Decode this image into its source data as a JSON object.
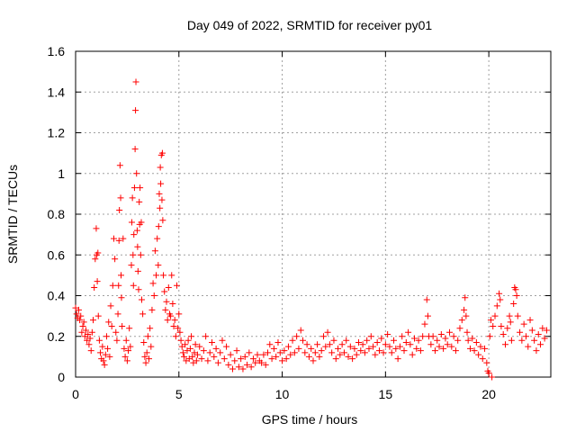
{
  "chart_data": {
    "type": "scatter",
    "title": "Day 049 of 2022, SRMTID for receiver py01",
    "xlabel": "GPS time / hours",
    "ylabel": "SRMTID / TECUs",
    "xlim": [
      0,
      23.0
    ],
    "ylim": [
      0,
      1.6
    ],
    "x_ticks": [
      0,
      5,
      10,
      15,
      20
    ],
    "x_tick_labels": [
      "0",
      "5",
      "10",
      "15",
      "20"
    ],
    "y_ticks": [
      0,
      0.2,
      0.4,
      0.6,
      0.8,
      1.0,
      1.2,
      1.4,
      1.6
    ],
    "y_tick_labels": [
      "0",
      "0.2",
      "0.4",
      "0.6",
      "0.8",
      "1",
      "1.2",
      "1.4",
      "1.6"
    ],
    "grid": true,
    "marker": "+",
    "series": [
      {
        "name": "py01",
        "color": "#ff0000",
        "points": [
          [
            0.0,
            0.34
          ],
          [
            0.05,
            0.31
          ],
          [
            0.1,
            0.29
          ],
          [
            0.15,
            0.33
          ],
          [
            0.2,
            0.28
          ],
          [
            0.25,
            0.3
          ],
          [
            0.3,
            0.22
          ],
          [
            0.35,
            0.25
          ],
          [
            0.4,
            0.27
          ],
          [
            0.45,
            0.2
          ],
          [
            0.5,
            0.23
          ],
          [
            0.55,
            0.18
          ],
          [
            0.6,
            0.21
          ],
          [
            0.65,
            0.16
          ],
          [
            0.7,
            0.19
          ],
          [
            0.75,
            0.13
          ],
          [
            0.8,
            0.22
          ],
          [
            0.85,
            0.28
          ],
          [
            0.9,
            0.44
          ],
          [
            0.95,
            0.58
          ],
          [
            1.0,
            0.73
          ],
          [
            1.02,
            0.6
          ],
          [
            1.05,
            0.47
          ],
          [
            1.08,
            0.61
          ],
          [
            1.1,
            0.3
          ],
          [
            1.15,
            0.18
          ],
          [
            1.2,
            0.12
          ],
          [
            1.25,
            0.09
          ],
          [
            1.3,
            0.15
          ],
          [
            1.35,
            0.08
          ],
          [
            1.4,
            0.06
          ],
          [
            1.45,
            0.11
          ],
          [
            1.5,
            0.2
          ],
          [
            1.55,
            0.14
          ],
          [
            1.6,
            0.27
          ],
          [
            1.65,
            0.1
          ],
          [
            1.7,
            0.35
          ],
          [
            1.75,
            0.25
          ],
          [
            1.8,
            0.45
          ],
          [
            1.85,
            0.68
          ],
          [
            1.9,
            0.58
          ],
          [
            1.95,
            0.22
          ],
          [
            2.0,
            0.18
          ],
          [
            2.05,
            0.31
          ],
          [
            2.08,
            0.45
          ],
          [
            2.1,
            0.67
          ],
          [
            2.12,
            0.82
          ],
          [
            2.15,
            1.04
          ],
          [
            2.18,
            0.88
          ],
          [
            2.2,
            0.5
          ],
          [
            2.22,
            0.39
          ],
          [
            2.25,
            0.25
          ],
          [
            2.3,
            0.68
          ],
          [
            2.35,
            0.14
          ],
          [
            2.4,
            0.1
          ],
          [
            2.45,
            0.18
          ],
          [
            2.5,
            0.08
          ],
          [
            2.55,
            0.13
          ],
          [
            2.6,
            0.24
          ],
          [
            2.65,
            0.15
          ],
          [
            2.7,
            0.55
          ],
          [
            2.72,
            0.76
          ],
          [
            2.75,
            0.88
          ],
          [
            2.78,
            0.6
          ],
          [
            2.8,
            0.45
          ],
          [
            2.82,
            0.7
          ],
          [
            2.85,
            0.93
          ],
          [
            2.88,
            1.12
          ],
          [
            2.9,
            1.31
          ],
          [
            2.92,
            1.45
          ],
          [
            2.95,
            1.0
          ],
          [
            2.98,
            0.72
          ],
          [
            3.0,
            0.64
          ],
          [
            3.02,
            0.52
          ],
          [
            3.05,
            0.43
          ],
          [
            3.08,
            0.86
          ],
          [
            3.1,
            0.75
          ],
          [
            3.12,
            0.93
          ],
          [
            3.15,
            0.6
          ],
          [
            3.18,
            0.76
          ],
          [
            3.2,
            0.38
          ],
          [
            3.25,
            0.31
          ],
          [
            3.3,
            0.17
          ],
          [
            3.35,
            0.1
          ],
          [
            3.4,
            0.07
          ],
          [
            3.45,
            0.12
          ],
          [
            3.5,
            0.2
          ],
          [
            3.55,
            0.09
          ],
          [
            3.6,
            0.24
          ],
          [
            3.65,
            0.15
          ],
          [
            3.7,
            0.33
          ],
          [
            3.75,
            0.46
          ],
          [
            3.8,
            0.4
          ],
          [
            3.85,
            0.62
          ],
          [
            3.9,
            0.5
          ],
          [
            3.95,
            0.68
          ],
          [
            4.0,
            0.55
          ],
          [
            4.02,
            0.74
          ],
          [
            4.05,
            0.9
          ],
          [
            4.08,
            0.83
          ],
          [
            4.1,
            1.03
          ],
          [
            4.12,
            0.95
          ],
          [
            4.15,
            1.09
          ],
          [
            4.18,
            0.87
          ],
          [
            4.2,
            1.1
          ],
          [
            4.22,
            0.77
          ],
          [
            4.25,
            0.5
          ],
          [
            4.3,
            0.42
          ],
          [
            4.35,
            0.33
          ],
          [
            4.4,
            0.37
          ],
          [
            4.45,
            0.28
          ],
          [
            4.5,
            0.44
          ],
          [
            4.55,
            0.31
          ],
          [
            4.6,
            0.3
          ],
          [
            4.65,
            0.5
          ],
          [
            4.7,
            0.36
          ],
          [
            4.75,
            0.25
          ],
          [
            4.8,
            0.28
          ],
          [
            4.85,
            0.2
          ],
          [
            4.9,
            0.45
          ],
          [
            4.95,
            0.24
          ],
          [
            5.0,
            0.31
          ],
          [
            5.05,
            0.22
          ],
          [
            5.1,
            0.18
          ],
          [
            5.15,
            0.15
          ],
          [
            5.2,
            0.12
          ],
          [
            5.25,
            0.1
          ],
          [
            5.3,
            0.16
          ],
          [
            5.35,
            0.08
          ],
          [
            5.4,
            0.13
          ],
          [
            5.45,
            0.18
          ],
          [
            5.5,
            0.09
          ],
          [
            5.55,
            0.14
          ],
          [
            5.6,
            0.2
          ],
          [
            5.65,
            0.1
          ],
          [
            5.7,
            0.07
          ],
          [
            5.75,
            0.12
          ],
          [
            5.8,
            0.16
          ],
          [
            5.85,
            0.08
          ],
          [
            5.9,
            0.11
          ],
          [
            6.0,
            0.15
          ],
          [
            6.1,
            0.09
          ],
          [
            6.2,
            0.13
          ],
          [
            6.3,
            0.2
          ],
          [
            6.4,
            0.08
          ],
          [
            6.5,
            0.12
          ],
          [
            6.6,
            0.17
          ],
          [
            6.7,
            0.1
          ],
          [
            6.8,
            0.14
          ],
          [
            6.9,
            0.07
          ],
          [
            7.0,
            0.12
          ],
          [
            7.1,
            0.18
          ],
          [
            7.2,
            0.09
          ],
          [
            7.3,
            0.15
          ],
          [
            7.4,
            0.06
          ],
          [
            7.5,
            0.11
          ],
          [
            7.6,
            0.04
          ],
          [
            7.7,
            0.08
          ],
          [
            7.8,
            0.13
          ],
          [
            7.9,
            0.05
          ],
          [
            8.0,
            0.09
          ],
          [
            8.1,
            0.04
          ],
          [
            8.2,
            0.1
          ],
          [
            8.3,
            0.06
          ],
          [
            8.4,
            0.12
          ],
          [
            8.5,
            0.05
          ],
          [
            8.6,
            0.09
          ],
          [
            8.7,
            0.07
          ],
          [
            8.8,
            0.11
          ],
          [
            8.9,
            0.08
          ],
          [
            9.0,
            0.07
          ],
          [
            9.1,
            0.11
          ],
          [
            9.2,
            0.06
          ],
          [
            9.3,
            0.12
          ],
          [
            9.4,
            0.16
          ],
          [
            9.5,
            0.09
          ],
          [
            9.6,
            0.14
          ],
          [
            9.7,
            0.1
          ],
          [
            9.8,
            0.17
          ],
          [
            9.9,
            0.12
          ],
          [
            10.0,
            0.08
          ],
          [
            10.1,
            0.13
          ],
          [
            10.2,
            0.09
          ],
          [
            10.3,
            0.15
          ],
          [
            10.4,
            0.11
          ],
          [
            10.5,
            0.18
          ],
          [
            10.6,
            0.12
          ],
          [
            10.7,
            0.2
          ],
          [
            10.8,
            0.14
          ],
          [
            10.9,
            0.23
          ],
          [
            11.0,
            0.18
          ],
          [
            11.1,
            0.12
          ],
          [
            11.2,
            0.16
          ],
          [
            11.3,
            0.1
          ],
          [
            11.4,
            0.14
          ],
          [
            11.5,
            0.08
          ],
          [
            11.6,
            0.12
          ],
          [
            11.7,
            0.16
          ],
          [
            11.8,
            0.1
          ],
          [
            11.9,
            0.13
          ],
          [
            12.0,
            0.2
          ],
          [
            12.1,
            0.15
          ],
          [
            12.2,
            0.22
          ],
          [
            12.3,
            0.16
          ],
          [
            12.4,
            0.12
          ],
          [
            12.5,
            0.18
          ],
          [
            12.6,
            0.09
          ],
          [
            12.7,
            0.14
          ],
          [
            12.8,
            0.11
          ],
          [
            12.9,
            0.16
          ],
          [
            13.0,
            0.12
          ],
          [
            13.1,
            0.18
          ],
          [
            13.2,
            0.1
          ],
          [
            13.3,
            0.15
          ],
          [
            13.4,
            0.09
          ],
          [
            13.5,
            0.14
          ],
          [
            13.6,
            0.11
          ],
          [
            13.7,
            0.17
          ],
          [
            13.8,
            0.13
          ],
          [
            13.9,
            0.16
          ],
          [
            14.0,
            0.12
          ],
          [
            14.1,
            0.18
          ],
          [
            14.2,
            0.14
          ],
          [
            14.3,
            0.2
          ],
          [
            14.4,
            0.15
          ],
          [
            14.5,
            0.11
          ],
          [
            14.6,
            0.17
          ],
          [
            14.7,
            0.13
          ],
          [
            14.8,
            0.19
          ],
          [
            14.9,
            0.12
          ],
          [
            15.0,
            0.16
          ],
          [
            15.1,
            0.21
          ],
          [
            15.2,
            0.15
          ],
          [
            15.3,
            0.12
          ],
          [
            15.4,
            0.18
          ],
          [
            15.5,
            0.14
          ],
          [
            15.6,
            0.09
          ],
          [
            15.7,
            0.15
          ],
          [
            15.8,
            0.2
          ],
          [
            15.9,
            0.13
          ],
          [
            16.0,
            0.17
          ],
          [
            16.1,
            0.22
          ],
          [
            16.2,
            0.16
          ],
          [
            16.3,
            0.11
          ],
          [
            16.4,
            0.19
          ],
          [
            16.5,
            0.14
          ],
          [
            16.6,
            0.18
          ],
          [
            16.7,
            0.13
          ],
          [
            16.8,
            0.2
          ],
          [
            16.9,
            0.26
          ],
          [
            17.0,
            0.38
          ],
          [
            17.05,
            0.3
          ],
          [
            17.1,
            0.2
          ],
          [
            17.2,
            0.16
          ],
          [
            17.3,
            0.2
          ],
          [
            17.4,
            0.13
          ],
          [
            17.5,
            0.18
          ],
          [
            17.6,
            0.15
          ],
          [
            17.7,
            0.21
          ],
          [
            17.8,
            0.14
          ],
          [
            17.9,
            0.19
          ],
          [
            18.0,
            0.16
          ],
          [
            18.1,
            0.22
          ],
          [
            18.2,
            0.15
          ],
          [
            18.3,
            0.2
          ],
          [
            18.4,
            0.13
          ],
          [
            18.5,
            0.18
          ],
          [
            18.6,
            0.24
          ],
          [
            18.7,
            0.28
          ],
          [
            18.8,
            0.33
          ],
          [
            18.85,
            0.39
          ],
          [
            18.9,
            0.3
          ],
          [
            18.95,
            0.22
          ],
          [
            19.0,
            0.18
          ],
          [
            19.1,
            0.14
          ],
          [
            19.2,
            0.19
          ],
          [
            19.3,
            0.13
          ],
          [
            19.4,
            0.17
          ],
          [
            19.5,
            0.11
          ],
          [
            19.6,
            0.15
          ],
          [
            19.7,
            0.09
          ],
          [
            19.8,
            0.14
          ],
          [
            19.9,
            0.07
          ],
          [
            19.95,
            0.03
          ],
          [
            20.0,
            0.02
          ],
          [
            20.05,
            0.2
          ],
          [
            20.1,
            0.28
          ],
          [
            20.15,
            0.0
          ],
          [
            20.2,
            0.25
          ],
          [
            20.3,
            0.3
          ],
          [
            20.4,
            0.35
          ],
          [
            20.5,
            0.41
          ],
          [
            20.55,
            0.38
          ],
          [
            20.6,
            0.25
          ],
          [
            20.7,
            0.21
          ],
          [
            20.8,
            0.16
          ],
          [
            20.9,
            0.24
          ],
          [
            21.0,
            0.3
          ],
          [
            21.05,
            0.27
          ],
          [
            21.1,
            0.18
          ],
          [
            21.2,
            0.36
          ],
          [
            21.25,
            0.44
          ],
          [
            21.3,
            0.43
          ],
          [
            21.35,
            0.4
          ],
          [
            21.4,
            0.3
          ],
          [
            21.5,
            0.22
          ],
          [
            21.6,
            0.18
          ],
          [
            21.7,
            0.26
          ],
          [
            21.8,
            0.2
          ],
          [
            21.9,
            0.15
          ],
          [
            22.0,
            0.28
          ],
          [
            22.1,
            0.23
          ],
          [
            22.2,
            0.18
          ],
          [
            22.3,
            0.13
          ],
          [
            22.4,
            0.21
          ],
          [
            22.5,
            0.16
          ],
          [
            22.6,
            0.24
          ],
          [
            22.7,
            0.19
          ],
          [
            22.8,
            0.23
          ]
        ]
      }
    ]
  }
}
